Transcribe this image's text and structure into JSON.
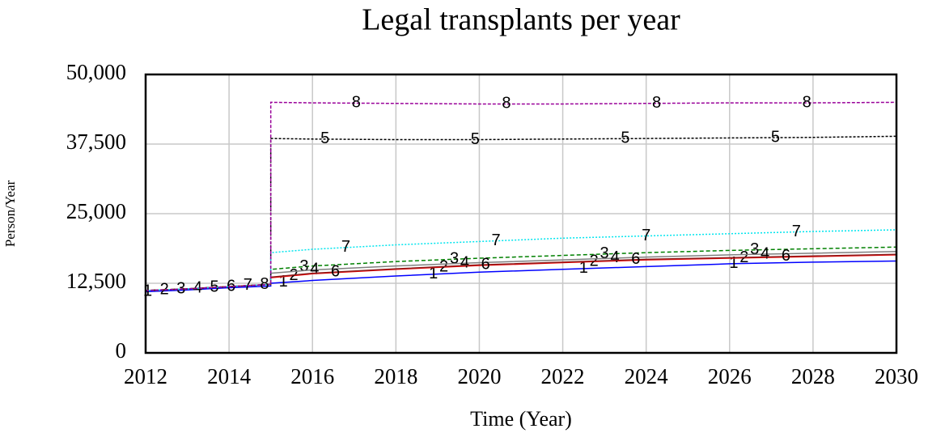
{
  "chart_data": {
    "type": "line",
    "title": "Legal transplants per year",
    "x_label": "Time (Year)",
    "y_label": "Person/Year",
    "x": [
      2012,
      2013,
      2014,
      2015,
      2015,
      2016,
      2018,
      2020,
      2022,
      2024,
      2026,
      2028,
      2030
    ],
    "series": [
      {
        "name": "1",
        "color": "#0000ff",
        "dash": "none",
        "values": [
          11000,
          11300,
          11700,
          12000,
          12500,
          13000,
          13800,
          14500,
          15000,
          15500,
          16000,
          16300,
          16500
        ]
      },
      {
        "name": "2",
        "color": "#ff0000",
        "dash": "none",
        "values": [
          11200,
          11500,
          11900,
          12300,
          13500,
          14200,
          15000,
          15700,
          16200,
          16700,
          17000,
          17300,
          17600
        ]
      },
      {
        "name": "3",
        "color": "#008000",
        "dash": "5,3",
        "values": [
          11200,
          11500,
          11900,
          12300,
          15000,
          15600,
          16400,
          17000,
          17500,
          18000,
          18400,
          18700,
          19000
        ]
      },
      {
        "name": "4",
        "color": "#808080",
        "dash": "none",
        "values": [
          11200,
          11500,
          11900,
          12300,
          14300,
          14900,
          15600,
          16200,
          16700,
          17200,
          17600,
          17900,
          18200
        ]
      },
      {
        "name": "5",
        "color": "#000000",
        "dash": "3,2",
        "values": [
          11200,
          11500,
          11900,
          12300,
          38500,
          38400,
          38300,
          38300,
          38400,
          38500,
          38600,
          38700,
          38900
        ]
      },
      {
        "name": "6",
        "color": "#8b1a1a",
        "dash": "none",
        "values": [
          11200,
          11500,
          11900,
          12300,
          13600,
          14300,
          15100,
          15800,
          16300,
          16800,
          17100,
          17400,
          17700
        ]
      },
      {
        "name": "7",
        "color": "#00e5ee",
        "dash": "2,2",
        "values": [
          11200,
          11500,
          11900,
          12300,
          18000,
          18600,
          19400,
          20000,
          20600,
          21000,
          21400,
          21800,
          22100
        ]
      },
      {
        "name": "8",
        "color": "#990099",
        "dash": "4,2",
        "values": [
          11200,
          11500,
          11900,
          12300,
          45000,
          44900,
          44800,
          44700,
          44700,
          44800,
          44900,
          44900,
          45000
        ]
      }
    ],
    "xlim": [
      2012,
      2030
    ],
    "xticks": [
      2012,
      2014,
      2016,
      2018,
      2020,
      2022,
      2024,
      2026,
      2028,
      2030
    ],
    "ylim": [
      0,
      50000
    ],
    "yticks": [
      0,
      {
        "value": 12500,
        "label": "12,500"
      },
      {
        "value": 25000,
        "label": "25,000"
      },
      {
        "value": 37500,
        "label": "37,500"
      },
      {
        "value": 50000,
        "label": "50,000"
      }
    ],
    "grid": true
  }
}
